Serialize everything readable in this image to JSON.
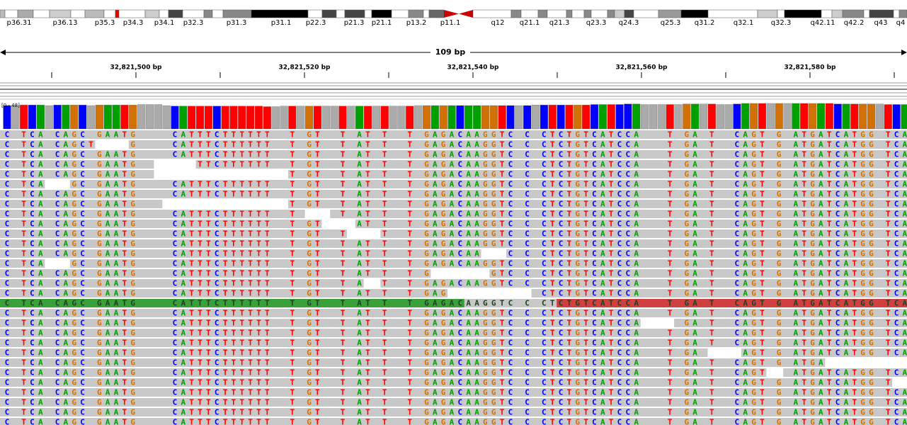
{
  "ideogram": {
    "bands": [
      "p36.31",
      "p36.13",
      "p35.3",
      "p34.3",
      "p34.1",
      "p32.3",
      "p31.3",
      "p31.1",
      "p22.3",
      "p21.3",
      "p21.1",
      "p13.2",
      "p11.1",
      "q12",
      "q21.1",
      "q21.3",
      "q23.3",
      "q24.3",
      "q25.3",
      "q31.2",
      "q32.1",
      "q32.3",
      "q42.11",
      "q42.2",
      "q43",
      "q4"
    ]
  },
  "ruler": {
    "span": "109 bp",
    "positions": [
      "32,821,500 bp",
      "32,821,520 bp",
      "32,821,540 bp",
      "32,821,560 bp",
      "32,821,580 bp"
    ]
  },
  "coverage": {
    "range": "[0 - 48]",
    "max": 48,
    "values": [
      44,
      44,
      45,
      45,
      45,
      44,
      45,
      45,
      45,
      45,
      44,
      45,
      45,
      45,
      45,
      45,
      46,
      46,
      46,
      44,
      43,
      43,
      43,
      43,
      43,
      43,
      43,
      43,
      43,
      43,
      43,
      42,
      42,
      43,
      43,
      43,
      43,
      43,
      43,
      43,
      43,
      43,
      43,
      43,
      43,
      43,
      43,
      43,
      43,
      44,
      44,
      44,
      44,
      44,
      44,
      44,
      44,
      44,
      44,
      44,
      44,
      44,
      44,
      45,
      45,
      45,
      45,
      45,
      45,
      45,
      46,
      46,
      46,
      46,
      47,
      47,
      46,
      46,
      46,
      46,
      46,
      47,
      47,
      47,
      47,
      46,
      46,
      47,
      48,
      48,
      48,
      48,
      48,
      48,
      48,
      48,
      48,
      48,
      48,
      47,
      47,
      47,
      47,
      47,
      47,
      46,
      46,
      46
    ]
  },
  "reads": [
    "C TCA CAGC GAATG    CATTTCTTTTTT  T GT  T AT T  T GAGACAAGGTC C CTCTGTCATCCA   T GA T  CAGT G ATGATCATGG TCA",
    "C TCA CAGCT----G    CATTTCTTTTTT  T GT  T AT T  T GAGACAAGGTC C CTCTGTCATCCA   T GA T  CAGT G ATGATCATGG TCA",
    "C TCA CAGC GAATG    CATTTCTTTTTT  T GT  T AT T  T GAGACAAGGTC C CTCTGTCATCCA   T GA T  CAGT G ATGATCATGG TCA",
    "C TCA CAGC GAATG  -----TTCTTTTTT  T GT  T AT T  T GAGACAAGGTC C CTCTGTCATCCA   T GA T  CAGT G ATGATCATGG TCA",
    "C TCA CAGC GAATG  ----------------T GT  T AT T  T GAGACAAGGTC C CTCTGTCATCCA   T GA T  CAGT G ATGATCATGG TCA",
    "C TCA---GC GAATG    CATTTCTTTTTT  T GT  T AT T  T GAGACAAGGTC C CTCTGTCATCCA   T GA T  CAGT G ATGATCATGG TCA",
    "C TCA CAGC GAATG    CATTTCTTTTTT  T GT  T AT T  T GAGACAAGGTC C CTCTGTCATCCA   T GA T  CAGT G ATGATCATGG TCA",
    "C TCA CAGC GAATG   ---------------T GT  T AT T  T GAGACAAGGTC C CTCTGTCATCCA   T GA T  CAGT G ATGATCATGG TCA",
    "C TCA CAGC GAATG    CATTTCTTTTTT  T --- T AT T  T GAGACAAGGTC C CTCTGTCATCCA   T GA T  CAGT G ATGATCATGG TCA",
    "C TCA CAGC GAATG    CATTTCTTTTTT  T GT----AT T  T GAGACAAGGTC C CTCTGTCATCCA   T GA T  CAGT G ATGATCATGG TCA",
    "C TCA CAGC GAATG    CATTTCTTTTTT  T GT  T----T  T GAGACAAGGTC C CTCTGTCATCCA   T GA T  CAGT G ATGATCATGG TCA",
    "C TCA CAGC GAATG    CATTTCTTTTTT  T GT  T AT T  T GAGACAAGGTC C CTCTGTCATCCA   T GA T  CAGT G ATGATCATGG TCA",
    "C TCA CAGC GAATG    CATTTCTTTTTT  T GT  T AT T  T GAGACAA---C C CTCTGTCATCCA   T GA T  CAGT G ATGATCATGG TCA",
    "C TCA---GC GAATG    CATTTCTTTTTT  T GT  T AT T  T GAGACAAGGTC C CTCTGTCATCCA   T GA T  CAGT G ATGATCATGG TCA",
    "C TCA CAGC GAATG    CATTTCTTTTTT  T GT  T AT T  T G-------GTC C CTCTGTCATCCA   T GA T  CAGT G ATGATCATGG TCA",
    "C TCA CAGC GAATG    CATTTCTTTTTT  T GT  T A--T  T GAGACAAGGTC C CTCTGTCATCCA   T GA T  CAGT G ATGATCATGG TCA",
    "C TCA CAGC GAATG    CATTTCTTTTTT  T GT  T AT T  T GAG---------- CTCTGTCATCCA   T GA T  CAGT G ATGATCATGG TCA",
    "C TCA CAGC GAATG    CATTTCTTTTTT  T GT  T AT T  T GAGACAAGGTC C CTCTGTCATCCA   T GA T  CAGT G ATGATCATGG TCA",
    "C TCA CAGC GAATG    CATTTCTTTTTT  T GT  T AT T  T GAGACAAGGTC C CTCTGTCATCCA   T GA T  CAGT G ATGATCATGG TCA",
    "C TCA CAGC GAATG    CATTTCTTTTTT  T GT  T AT T  T GAGACAAGGTC C CTCTGTCATCCA---- GA T  CAGT G ATGATCATGG TCA",
    "C TCA CAGC GAATG    CATTTCTTTTTT  T GT  T AT T  T GAGACAAGGTC C CTCTGTCATCCA   T GA T  CAGT G ATGATCATGG TCA",
    "C TCA CAGC GAATG    CATTTCTTTTTT  T GT  T AT T  T GAGACAAGGTC C CTCTGTCATCCA   T GA T  CAGT G ATGATCATGG TCA",
    "C TCA CAGC GAATG    CATTTCTTTTTT  T GT  T AT T  T GAGACAAGGTC C CTCTGTCATCCA   T GA ----AGT G ATGATCATGG TCA",
    "C TCA CAGC GAATG    CATTTCTTTTTT  T GT  T AT T  T GAGACAAGGTC C CTCTGTCATCCA   T GA T  CAGT G ATGA----------",
    "C TCA CAGC GAATG    CATTTCTTTTTT  T GT  T AT T  T GAGACAAGGTC C CTCTGTCATCCA   T GA T  CAGT-- ATGATCATGG TCA",
    "C TCA CAGC GAATG    CATTTCTTTTTT  T GT  T AT T  T GAGACAAGGTC C CTCTGTCATCCA   T GA T  CAGT G ATGATCATGG T--",
    "C TCA CAGC GAATG    CATTTCTTTTTT  T GT  T AT T  T GAGACAAGGTC C CTCTGTCATCCA   T GA T  CAGT G ATGATCATGG TCA",
    "C TCA CAGC GAATG    CATTTCTTTTTT  T GT  T AT T  T GAGACAAGGTC C CTCTGTCATCCA   T GA T  CAGT G ATGATCATGG TCA",
    "C TCA CAGC GAATG    CATTTCTTTTTT  T GT  T AT T  T GAGACAAGGTC C CTCTGTCATCCA   T GA T  CAGT G ATGATCATGG TCA",
    "C TCA CAGC GAATG    CATTTCTTTTTT  T GT  T AT T  T GAGACAAGGTC C CTCTGTCATCCA   T GA T  CAGT G ATGATCATGG TCA"
  ]
}
